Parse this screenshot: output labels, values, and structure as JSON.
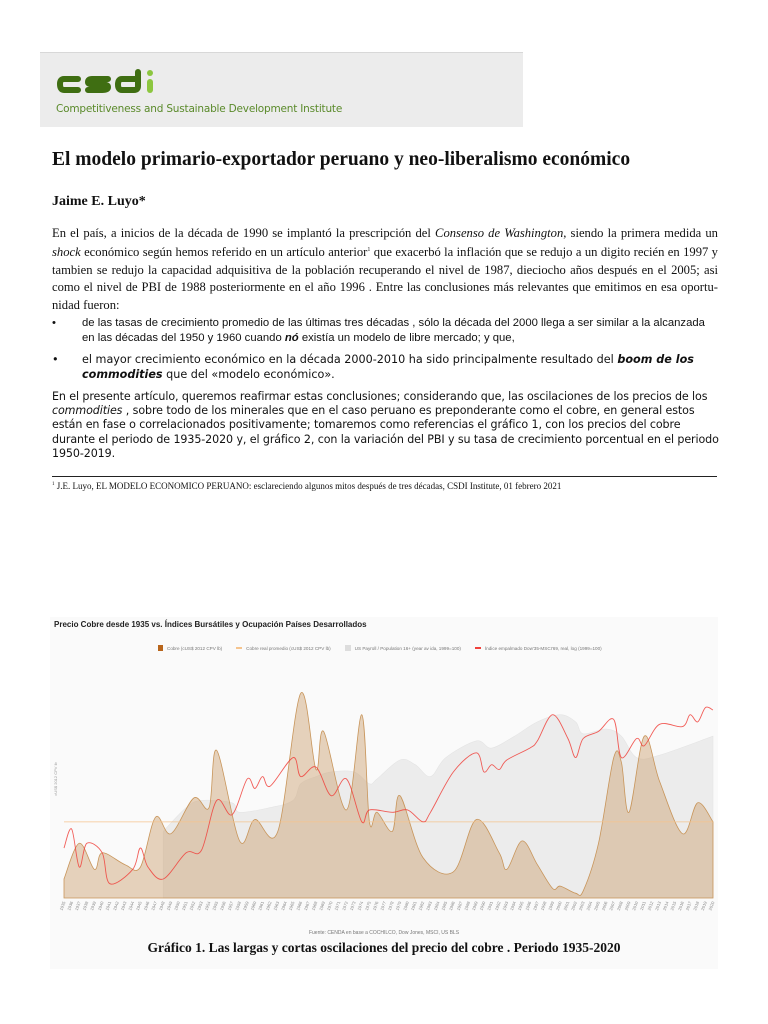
{
  "header": {
    "logo_text": "csdi",
    "logo_subtitle": "Competitiveness and Sustainable Development Institute",
    "colors": {
      "logo_dark": "#3f6e12",
      "logo_light": "#8cc63f"
    }
  },
  "article": {
    "title": "El modelo primario-exportador peruano y neo-liberalismo económico",
    "author": "Jaime E. Luyo*",
    "p1": {
      "s1": "En el país, a inicios de la década de 1990 se implantó la prescripción del ",
      "s2_italic": "Consenso de Washington",
      "s3": ", siendo la primera medida un ",
      "s4_italic": "shock",
      "s5": " económico según hemos referido en un  artículo anterior",
      "footnote_ref": "1",
      "s6": " que exacerbó la inflación que se redujo a un digito recién en 1997 y tambien se redujo la capacidad adquisitiva de la población recuperando el nivel de 1987, dieciocho años después en el 2005; asi como el nivel de PBI de 1988 posteriormente en el año 1996 . Entre las conclusiones más relevantes que emitimos en esa oportu-nidad fueron:"
    },
    "bullets": [
      {
        "marker": "•",
        "s1": "de las tasas de crecimiento promedio de las últimas tres décadas , sólo la década del 2000 llega a ser similar a la alcanzada en las décadas del 1950 y 1960 cuando ",
        "s2_bold_italic": "nó",
        "s3": " existía un modelo de libre mercado; y que,"
      },
      {
        "marker": "•",
        "s1": "el mayor crecimiento económico en la década 2000-2010 ha sido principalmente resultado del ",
        "s2_bold_italic": "boom de los commodities",
        "s3": " que del  «modelo económico»."
      }
    ],
    "p2": {
      "s1": "En el presente artículo, queremos reafirmar estas conclusiones;  considerando que, las oscilaciones de los precios de los ",
      "s2_italic": "commodities",
      "s3": " , sobre todo de los minerales que en el caso peruano es preponderante como el cobre, en general estos están en fase o correlacionados positivamente; tomaremos como referencias el gráfico 1, con los precios del cobre durante el periodo de 1935-2020 y, el gráfico 2, con la variación del PBI y su tasa de crecimiento porcentual en el periodo 1950-2019."
    },
    "footnote": {
      "marker": "1",
      "text": " J.E. Luyo, EL MODELO ECONOMICO PERUANO: esclareciendo  algunos mitos después de tres décadas, CSDI Institute, 01 febrero 2021"
    },
    "figure_caption": "Gráfico 1. Las largas y cortas oscilaciones del precio del cobre . Periodo 1935-2020"
  },
  "chart_data": {
    "type": "area",
    "title": "Precio Cobre desde 1935 vs. Índices Bursátiles y Ocupación Países Desarrollados",
    "ylabel": "cUS$ 2012 CPV lb",
    "source": "Fuente: CENDA en base a COCHILCO, Dow Jones, MSCI, US BLS",
    "xlim": [
      1935,
      2020
    ],
    "ylim": [
      0,
      100
    ],
    "grid": false,
    "legend_position": "top",
    "note": "",
    "series": [
      {
        "name": "Cobre (cUS$ 2012 CPV lb)",
        "kind": "area",
        "color": "#c8955a",
        "x": [
          1935,
          1937,
          1939,
          1940,
          1943,
          1945,
          1947,
          1949,
          1952,
          1954,
          1955,
          1958,
          1960,
          1963,
          1966,
          1968,
          1969,
          1972,
          1974,
          1975,
          1976,
          1978,
          1979,
          1982,
          1986,
          1989,
          1992,
          1993,
          1995,
          1997,
          1999,
          2000,
          2002,
          2003,
          2005,
          2007,
          2008,
          2009,
          2011,
          2013,
          2016,
          2018,
          2020
        ],
        "y": [
          8,
          23,
          12,
          19,
          14,
          13,
          34,
          27,
          42,
          38,
          62,
          24,
          33,
          28,
          86,
          54,
          70,
          37,
          77,
          32,
          36,
          28,
          43,
          17,
          11,
          33,
          19,
          12,
          24,
          14,
          4,
          5,
          2,
          3,
          23,
          59,
          57,
          36,
          68,
          49,
          27,
          40,
          32
        ]
      },
      {
        "name": "Cobre real promedio (cUS$ 2012 CPV lb)",
        "kind": "hline",
        "color": "#f5c48e",
        "value": 32
      },
      {
        "name": "US Payroll / Population 16+ (year av ida, 1999=100)",
        "kind": "area",
        "color": "#e2e2e2",
        "x": [
          1948,
          1951,
          1953,
          1957,
          1958,
          1962,
          1965,
          1966,
          1968,
          1970,
          1973,
          1975,
          1976,
          1979,
          1981,
          1983,
          1985,
          1989,
          1991,
          1994,
          1997,
          2000,
          2002,
          2003,
          2006,
          2008,
          2010,
          2013,
          2020
        ],
        "y": [
          28,
          38,
          41,
          40,
          36,
          38,
          41,
          48,
          51,
          53,
          53,
          48,
          50,
          58,
          56,
          51,
          59,
          66,
          63,
          68,
          74,
          77,
          74,
          69,
          71,
          68,
          59,
          60,
          68
        ]
      },
      {
        "name": "Índice empalmado Dow'35-MSCI'69, real, log (1999=100)",
        "kind": "line",
        "color": "#f0423c",
        "x": [
          1935,
          1936,
          1937,
          1938,
          1940,
          1941,
          1944,
          1945,
          1946,
          1948,
          1951,
          1953,
          1955,
          1957,
          1959,
          1960,
          1961,
          1962,
          1965,
          1966,
          1968,
          1970,
          1972,
          1974,
          1975,
          1978,
          1980,
          1982,
          1983,
          1986,
          1989,
          1990,
          1991,
          1992,
          1993,
          1996,
          1997,
          1999,
          2001,
          2002,
          2003,
          2005,
          2007,
          2008,
          2010,
          2011,
          2013,
          2016,
          2017,
          2018,
          2019,
          2020
        ],
        "y": [
          21,
          29,
          13,
          23,
          19,
          6,
          12,
          21,
          13,
          8,
          19,
          20,
          41,
          35,
          50,
          46,
          51,
          47,
          59,
          51,
          55,
          43,
          50,
          32,
          37,
          36,
          37,
          32,
          36,
          53,
          61,
          53,
          56,
          54,
          58,
          63,
          66,
          77,
          67,
          59,
          67,
          70,
          75,
          59,
          67,
          64,
          73,
          72,
          77,
          74,
          80,
          79
        ]
      }
    ],
    "x_tick_labels": [
      "1935",
      "1936",
      "1937",
      "1938",
      "1939",
      "1940",
      "1941",
      "1942",
      "1943",
      "1944",
      "1945",
      "1946",
      "1947",
      "1948",
      "1949",
      "1950",
      "1951",
      "1952",
      "1953",
      "1954",
      "1955",
      "1956",
      "1957",
      "1958",
      "1959",
      "1960",
      "1961",
      "1962",
      "1963",
      "1964",
      "1965",
      "1966",
      "1967",
      "1968",
      "1969",
      "1970",
      "1971",
      "1972",
      "1973",
      "1974",
      "1975",
      "1976",
      "1977",
      "1978",
      "1979",
      "1980",
      "1981",
      "1982",
      "1983",
      "1984",
      "1985",
      "1986",
      "1987",
      "1988",
      "1989",
      "1990",
      "1991",
      "1992",
      "1993",
      "1994",
      "1995",
      "1996",
      "1997",
      "1998",
      "1999",
      "2000",
      "2001",
      "2002",
      "2003",
      "2004",
      "2005",
      "2006",
      "2007",
      "2008",
      "2009",
      "2010",
      "2011",
      "2012",
      "2013",
      "2014",
      "2015",
      "2016",
      "2017",
      "2018",
      "2019",
      "2020"
    ]
  }
}
